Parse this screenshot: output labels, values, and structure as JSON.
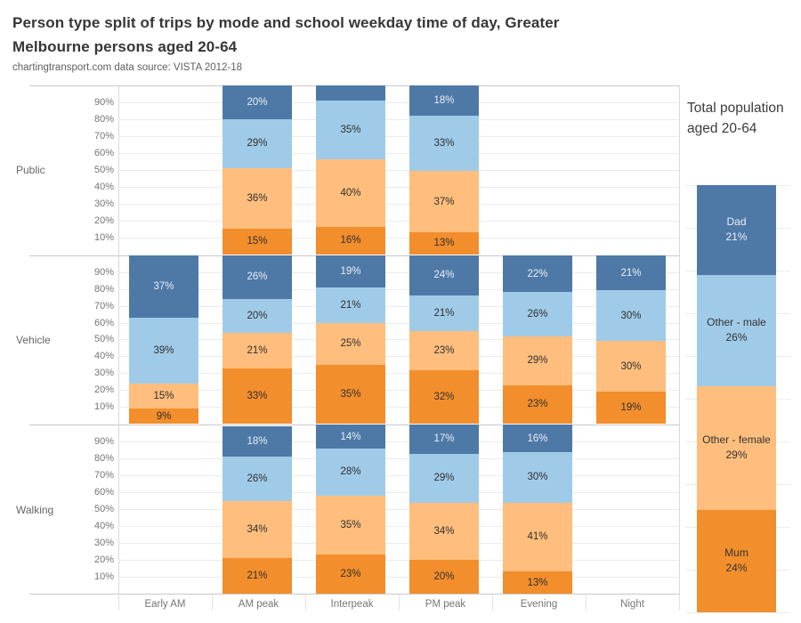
{
  "title": "Person type split of trips by mode and school weekday time of day, Greater Melbourne persons aged 20-64",
  "title_lines": [
    "Person type split of trips by mode and school weekday time of day, Greater",
    "Melbourne persons aged 20-64"
  ],
  "subtitle": "chartingtransport.com  data source: VISTA 2012-18",
  "chart_data": {
    "type": "bar",
    "variant": "100%-stacked, small multiples by mode",
    "title": "Person type split of trips by mode and school weekday time of day, Greater Melbourne persons aged 20-64",
    "source_note": "chartingtransport.com  data source: VISTA 2012-18",
    "x_categories": [
      "Early AM",
      "AM peak",
      "Interpeak",
      "PM peak",
      "Evening",
      "Night"
    ],
    "row_panels": [
      "Public",
      "Vehicle",
      "Walking"
    ],
    "y_ticks": [
      "90%",
      "80%",
      "70%",
      "60%",
      "50%",
      "40%",
      "30%",
      "20%",
      "10%"
    ],
    "unit": "%",
    "ylim": [
      0,
      100
    ],
    "grid": "horizontal, every 10%",
    "stack_order_bottom_to_top": [
      "Mum",
      "Other - female",
      "Other - male",
      "Dad"
    ],
    "series_colors": {
      "Dad": "#4e79a7",
      "Other - male": "#a0cbe8",
      "Other - female": "#ffbe7d",
      "Mum": "#f28e2b"
    },
    "panels": [
      {
        "mode": "Public",
        "bars": [
          {
            "category": "Early AM",
            "segments": null
          },
          {
            "category": "AM peak",
            "segments": {
              "Mum": 15,
              "Other - female": 36,
              "Other - male": 29,
              "Dad": 20
            }
          },
          {
            "category": "Interpeak",
            "segments": {
              "Mum": 16,
              "Other - female": 40,
              "Other - male": 35,
              "Dad": 9
            },
            "hide_labels": [
              "Dad"
            ]
          },
          {
            "category": "PM peak",
            "segments": {
              "Mum": 13,
              "Other - female": 37,
              "Other - male": 33,
              "Dad": 18
            }
          },
          {
            "category": "Evening",
            "segments": null
          },
          {
            "category": "Night",
            "segments": null
          }
        ]
      },
      {
        "mode": "Vehicle",
        "bars": [
          {
            "category": "Early AM",
            "segments": {
              "Mum": 9,
              "Other - female": 15,
              "Other - male": 39,
              "Dad": 37
            }
          },
          {
            "category": "AM peak",
            "segments": {
              "Mum": 33,
              "Other - female": 21,
              "Other - male": 20,
              "Dad": 26
            }
          },
          {
            "category": "Interpeak",
            "segments": {
              "Mum": 35,
              "Other - female": 25,
              "Other - male": 21,
              "Dad": 19
            }
          },
          {
            "category": "PM peak",
            "segments": {
              "Mum": 32,
              "Other - female": 23,
              "Other - male": 21,
              "Dad": 24
            }
          },
          {
            "category": "Evening",
            "segments": {
              "Mum": 23,
              "Other - female": 29,
              "Other - male": 26,
              "Dad": 22
            }
          },
          {
            "category": "Night",
            "segments": {
              "Mum": 19,
              "Other - female": 30,
              "Other - male": 30,
              "Dad": 21
            }
          }
        ]
      },
      {
        "mode": "Walking",
        "bars": [
          {
            "category": "Early AM",
            "segments": null
          },
          {
            "category": "AM peak",
            "segments": {
              "Mum": 21,
              "Other - female": 34,
              "Other - male": 26,
              "Dad": 18
            }
          },
          {
            "category": "Interpeak",
            "segments": {
              "Mum": 23,
              "Other - female": 35,
              "Other - male": 28,
              "Dad": 14
            }
          },
          {
            "category": "PM peak",
            "segments": {
              "Mum": 20,
              "Other - female": 34,
              "Other - male": 29,
              "Dad": 17
            }
          },
          {
            "category": "Evening",
            "segments": {
              "Mum": 13,
              "Other - female": 41,
              "Other - male": 30,
              "Dad": 16
            }
          },
          {
            "category": "Night",
            "segments": null
          }
        ]
      }
    ],
    "total_panel": {
      "title": "Total population aged 20-64",
      "segments_top_to_bottom": [
        {
          "name": "Dad",
          "value": 21,
          "label": "Dad 21%"
        },
        {
          "name": "Other - male",
          "value": 26,
          "label": "Other - male 26%"
        },
        {
          "name": "Other - female",
          "value": 29,
          "label": "Other - female 29%"
        },
        {
          "name": "Mum",
          "value": 24,
          "label": "Mum 24%"
        }
      ],
      "legend_position": "right"
    }
  }
}
